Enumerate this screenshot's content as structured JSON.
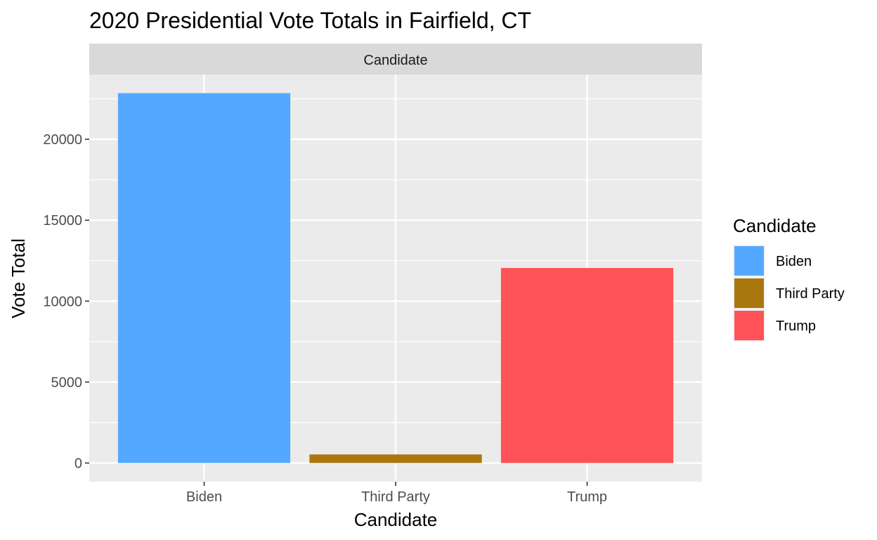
{
  "chart_data": {
    "type": "bar",
    "title": "2020 Presidential Vote Totals in Fairfield, CT",
    "facet_label": "Candidate",
    "xlabel": "Candidate",
    "ylabel": "Vote Total",
    "categories": [
      "Biden",
      "Third Party",
      "Trump"
    ],
    "values": [
      22850,
      530,
      12050
    ],
    "colors": [
      "#55A8FF",
      "#A9770E",
      "#FF5258"
    ],
    "y_ticks": [
      "0",
      "5000",
      "10000",
      "15000",
      "20000"
    ],
    "ylim": [
      -1150,
      24000
    ],
    "grid": true,
    "legend": {
      "title": "Candidate",
      "position": "right",
      "entries": [
        "Biden",
        "Third Party",
        "Trump"
      ]
    }
  }
}
